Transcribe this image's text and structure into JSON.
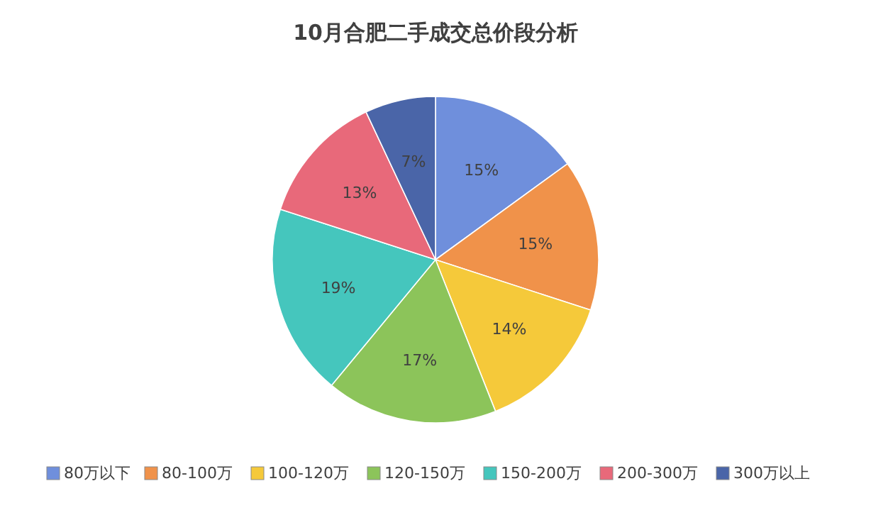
{
  "chart_data": {
    "type": "pie",
    "title": "10月合肥二手成交总价段分析",
    "categories": [
      "80万以下",
      "80-100万",
      "100-120万",
      "120-150万",
      "150-200万",
      "200-300万",
      "300万以上"
    ],
    "values": [
      15,
      15,
      14,
      17,
      19,
      13,
      7
    ],
    "value_labels": [
      "15%",
      "15%",
      "14%",
      "17%",
      "19%",
      "13%",
      "7%"
    ],
    "colors": [
      "#6f8fdc",
      "#f0924a",
      "#f5c93a",
      "#8cc45a",
      "#45c6bd",
      "#e8697a",
      "#4a65a8"
    ],
    "legend": "bottom"
  }
}
